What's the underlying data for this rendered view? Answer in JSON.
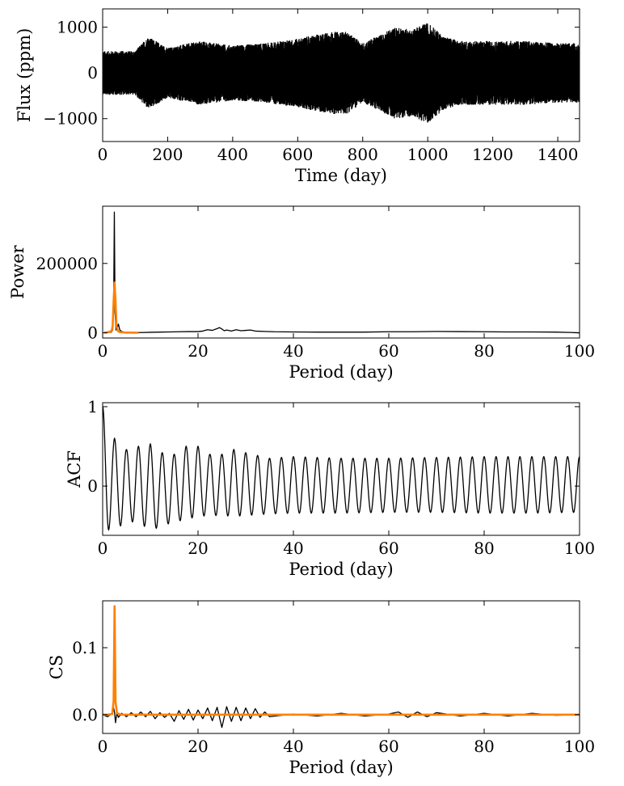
{
  "colors": {
    "primary": "#000000",
    "accent": "#ff8000"
  },
  "chart_data": [
    {
      "type": "line",
      "ylabel": "Flux (ppm)",
      "xlabel": "Time (day)",
      "xlim": [
        0,
        1467
      ],
      "ylim": [
        -1500,
        1400
      ],
      "xticks": [
        0,
        200,
        400,
        600,
        800,
        1000,
        1200,
        1400
      ],
      "xtick_labels": [
        "0",
        "200",
        "400",
        "600",
        "800",
        "1000",
        "1200",
        "1400"
      ],
      "yticks": [
        -1000,
        0,
        1000
      ],
      "ytick_labels": [
        "−1000",
        "0",
        "1000"
      ],
      "series": [
        {
          "color": "#000000",
          "style": "dense-points",
          "envelope_x": [
            0,
            100,
            140,
            200,
            300,
            400,
            500,
            600,
            700,
            750,
            800,
            900,
            950,
            1000,
            1050,
            1100,
            1200,
            1300,
            1400,
            1467
          ],
          "envelope_amp": [
            480,
            480,
            800,
            550,
            700,
            600,
            650,
            750,
            900,
            900,
            650,
            1000,
            950,
            1100,
            800,
            700,
            700,
            700,
            650,
            650
          ]
        }
      ]
    },
    {
      "type": "line",
      "ylabel": "Power",
      "xlabel": "Period (day)",
      "xlim": [
        0,
        100
      ],
      "ylim": [
        -15000,
        365000
      ],
      "xticks": [
        0,
        20,
        40,
        60,
        80,
        100
      ],
      "xtick_labels": [
        "0",
        "20",
        "40",
        "60",
        "80",
        "100"
      ],
      "yticks": [
        0,
        200000
      ],
      "ytick_labels": [
        "0",
        "200000"
      ],
      "series": [
        {
          "color": "#000000",
          "x": [
            0.3,
            1.0,
            1.8,
            2.1,
            2.3,
            2.45,
            2.6,
            2.8,
            3.0,
            3.3,
            3.6,
            4.0,
            4.5,
            5.0,
            6,
            8,
            10,
            12,
            14,
            16,
            18,
            20,
            21,
            22,
            23,
            24,
            24.5,
            25,
            25.5,
            26,
            27,
            28,
            29,
            30,
            31,
            32,
            34,
            36,
            40,
            45,
            50,
            55,
            60,
            65,
            70,
            75,
            80,
            85,
            90,
            95,
            98,
            100
          ],
          "y": [
            0,
            500,
            2000,
            8000,
            60000,
            348000,
            60000,
            8000,
            12000,
            25000,
            8000,
            4000,
            2000,
            1500,
            1000,
            800,
            1500,
            2000,
            2500,
            3000,
            3500,
            3500,
            5000,
            9000,
            7000,
            12000,
            15000,
            11000,
            6000,
            8000,
            5000,
            9000,
            6000,
            7000,
            8000,
            5000,
            4000,
            3000,
            2500,
            2000,
            2000,
            2000,
            3000,
            3000,
            4000,
            3500,
            3000,
            2500,
            2500,
            2000,
            1000,
            0
          ]
        },
        {
          "color": "#ff8000",
          "x": [
            0.3,
            1.0,
            1.5,
            1.9,
            2.1,
            2.3,
            2.5,
            2.7,
            2.9,
            3.2,
            3.6,
            4.5,
            6,
            7.5
          ],
          "y": [
            500,
            1500,
            3000,
            6000,
            20000,
            90000,
            145000,
            90000,
            20000,
            5000,
            2000,
            1000,
            500,
            300
          ]
        }
      ]
    },
    {
      "type": "line",
      "ylabel": "ACF",
      "xlabel": "Period (day)",
      "xlim": [
        0,
        100
      ],
      "ylim": [
        -0.62,
        1.05
      ],
      "xticks": [
        0,
        20,
        40,
        60,
        80,
        100
      ],
      "xtick_labels": [
        "0",
        "20",
        "40",
        "60",
        "80",
        "100"
      ],
      "yticks": [
        0,
        1
      ],
      "ytick_labels": [
        "0",
        "1"
      ],
      "series": [
        {
          "color": "#000000",
          "style": "damped-cosine",
          "period": 2.5,
          "start": 1.0,
          "peak_x": [
            2.5,
            5,
            7.5,
            10,
            12.5,
            15,
            17.5,
            20,
            22.5,
            25,
            27.5,
            30,
            35,
            40,
            50,
            60,
            70,
            80,
            90,
            100
          ],
          "peak_y": [
            0.6,
            0.46,
            0.5,
            0.53,
            0.42,
            0.4,
            0.5,
            0.5,
            0.4,
            0.4,
            0.46,
            0.42,
            0.35,
            0.37,
            0.35,
            0.35,
            0.36,
            0.37,
            0.37,
            0.37
          ],
          "trough_y": [
            -0.55,
            -0.45,
            -0.45,
            -0.56,
            -0.5,
            -0.45,
            -0.42,
            -0.38,
            -0.37,
            -0.37,
            -0.38,
            -0.37,
            -0.35,
            -0.34,
            -0.34,
            -0.33,
            -0.33,
            -0.34,
            -0.34,
            -0.33
          ]
        }
      ]
    },
    {
      "type": "line",
      "ylabel": "CS",
      "xlabel": "Period (day)",
      "xlim": [
        0,
        100
      ],
      "ylim": [
        -0.028,
        0.17
      ],
      "xticks": [
        0,
        20,
        40,
        60,
        80,
        100
      ],
      "xtick_labels": [
        "0",
        "20",
        "40",
        "60",
        "80",
        "100"
      ],
      "yticks": [
        0.0,
        0.1
      ],
      "ytick_labels": [
        "0.0",
        "0.1"
      ],
      "series": [
        {
          "color": "#000000",
          "x": [
            0,
            1,
            2,
            2.3,
            2.5,
            2.7,
            3.0,
            3.3,
            4,
            5,
            6,
            7,
            8,
            9,
            10,
            11,
            12,
            13,
            14,
            15,
            16,
            17,
            18,
            19,
            20,
            21,
            22,
            23,
            24,
            25,
            26,
            27,
            28,
            29,
            30,
            31,
            32,
            33,
            34,
            35,
            40,
            45,
            50,
            55,
            60,
            62,
            64,
            66,
            68,
            70,
            75,
            80,
            85,
            90,
            95,
            100
          ],
          "y": [
            0,
            -0.003,
            0.002,
            0.01,
            0.003,
            -0.012,
            0.003,
            -0.004,
            0.002,
            -0.003,
            0.003,
            -0.003,
            0.004,
            -0.003,
            0.005,
            -0.006,
            0.003,
            -0.004,
            0.002,
            -0.01,
            0.006,
            -0.007,
            0.008,
            -0.008,
            0.007,
            -0.006,
            0.01,
            -0.009,
            0.011,
            -0.019,
            0.012,
            -0.01,
            0.011,
            -0.009,
            0.01,
            -0.006,
            0.009,
            -0.004,
            0.004,
            -0.003,
            0.001,
            -0.002,
            0.002,
            -0.002,
            0.001,
            0.004,
            -0.004,
            0.004,
            -0.003,
            0.003,
            -0.002,
            0.002,
            -0.002,
            0.002,
            -0.001,
            0
          ]
        },
        {
          "color": "#ff8000",
          "x": [
            0,
            1,
            2.0,
            2.3,
            2.5,
            2.7,
            3.0,
            4,
            10,
            20,
            40,
            60,
            80,
            100
          ],
          "y": [
            0,
            0,
            0.001,
            0.02,
            0.162,
            0.02,
            0.002,
            0,
            0,
            0,
            0,
            0,
            0,
            0
          ]
        }
      ]
    }
  ]
}
